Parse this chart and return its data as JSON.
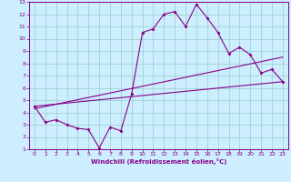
{
  "xlabel": "Windchill (Refroidissement éolien,°C)",
  "bg_color": "#cceeff",
  "line_color": "#880088",
  "grid_color": "#99cccc",
  "xlim": [
    -0.5,
    23.5
  ],
  "ylim": [
    1,
    13
  ],
  "xticks": [
    0,
    1,
    2,
    3,
    4,
    5,
    6,
    7,
    8,
    9,
    10,
    11,
    12,
    13,
    14,
    15,
    16,
    17,
    18,
    19,
    20,
    21,
    22,
    23
  ],
  "yticks": [
    1,
    2,
    3,
    4,
    5,
    6,
    7,
    8,
    9,
    10,
    11,
    12,
    13
  ],
  "line1_x": [
    0,
    1,
    2,
    3,
    4,
    5,
    6,
    7,
    8,
    9,
    10,
    11,
    12,
    13,
    14,
    15,
    16,
    17,
    18,
    19,
    20,
    21,
    22,
    23
  ],
  "line1_y": [
    4.5,
    3.2,
    3.4,
    3.0,
    2.7,
    2.6,
    1.1,
    2.8,
    2.5,
    5.5,
    10.5,
    10.8,
    12.0,
    12.2,
    11.0,
    12.8,
    11.7,
    10.5,
    8.8,
    9.3,
    8.7,
    7.2,
    7.5,
    6.5
  ],
  "line2_x": [
    0,
    23
  ],
  "line2_y": [
    4.5,
    6.5
  ],
  "line3_x": [
    0,
    23
  ],
  "line3_y": [
    4.3,
    8.5
  ]
}
